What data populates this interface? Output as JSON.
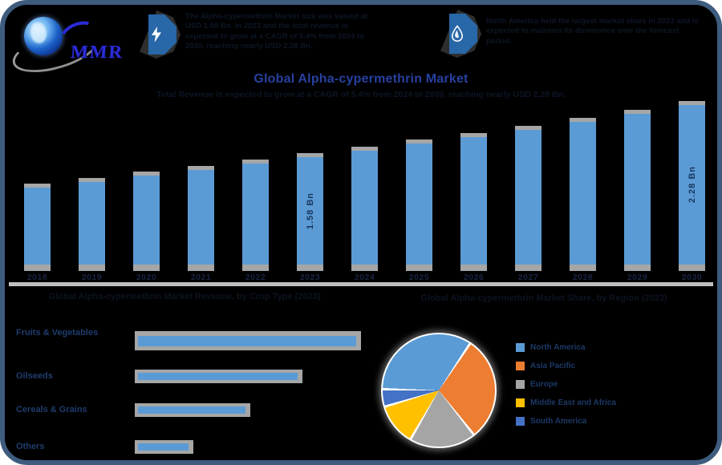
{
  "brand": {
    "logo_text": "MMR"
  },
  "header": {
    "left_highlight": {
      "icon": "lightning-icon",
      "text": "The Alpha-cypermethrin Market size was valued at USD 1.58 Bn. in 2023 and the total revenue is expected to grow at a CAGR of 5.4% from 2024 to 2030, reaching nearly USD 2.28 Bn."
    },
    "right_highlight": {
      "icon": "droplet-icon",
      "text": "North America held the largest market share in 2023 and is expected to maintain its dominance over the forecast period."
    }
  },
  "title": "Global Alpha-cypermethrin Market",
  "subtitle": "Total Revenue is expected to grow at a CAGR of 5.4% from 2024 to 2030, reaching nearly USD 2.28 Bn.",
  "sections": {
    "left_header": "Global Alpha-cypermethrin Market Revenue, by Crop Type (2023)",
    "right_header": "Global Alpha-cypermethrin Market Share, by Region (2023)"
  },
  "chart_data": [
    {
      "type": "bar",
      "name": "revenue-by-year",
      "title": "Global Alpha-cypermethrin Market Revenue",
      "categories": [
        "2018",
        "2019",
        "2020",
        "2021",
        "2022",
        "2023",
        "2024",
        "2025",
        "2026",
        "2027",
        "2028",
        "2029",
        "2030"
      ],
      "values": [
        1.17,
        1.25,
        1.33,
        1.41,
        1.49,
        1.58,
        1.67,
        1.76,
        1.85,
        1.95,
        2.05,
        2.16,
        2.28
      ],
      "unit": "USD Bn",
      "point_labels": {
        "2023": "1.58 Bn",
        "2030": "2.28 Bn"
      },
      "bar_color": "#5B9BD5",
      "cap_color": "#A6A6A6",
      "ylim": [
        0,
        2.4
      ],
      "grid": false,
      "legend_position": "none"
    },
    {
      "type": "bar",
      "orientation": "horizontal",
      "name": "share-by-crop-type",
      "title": "Global Alpha-cypermethrin Market Revenue, by Crop Type (2023)",
      "categories": [
        "Fruits & Vegetables",
        "Oilseeds",
        "Cereals & Grains",
        "Others"
      ],
      "values": [
        100,
        74,
        51,
        26
      ],
      "unit": "relative share index",
      "bar_color": "#5B9BD5",
      "track_color": "#A6A6A6",
      "grid": false
    },
    {
      "type": "pie",
      "name": "share-by-region",
      "title": "Global Alpha-cypermethrin Market Share, by Region (2023)",
      "labels": [
        "North America",
        "Asia Pacific",
        "Europe",
        "Middle East and Africa",
        "South America"
      ],
      "values": [
        34,
        30,
        19,
        12,
        5
      ],
      "colors": [
        "#5B9BD5",
        "#ED7D31",
        "#A5A5A5",
        "#FFC000",
        "#4472C4"
      ],
      "legend_position": "right"
    }
  ],
  "colors": {
    "frame_border": "#3E5C7E",
    "background": "#000000",
    "title_blue": "#2740A0",
    "divider_gray": "#BFBFBF",
    "dark_text": "#0D1626",
    "navy_label": "#1F3C6E",
    "value_label_navy": "#17375E",
    "badge_blue": "#2867A8"
  }
}
